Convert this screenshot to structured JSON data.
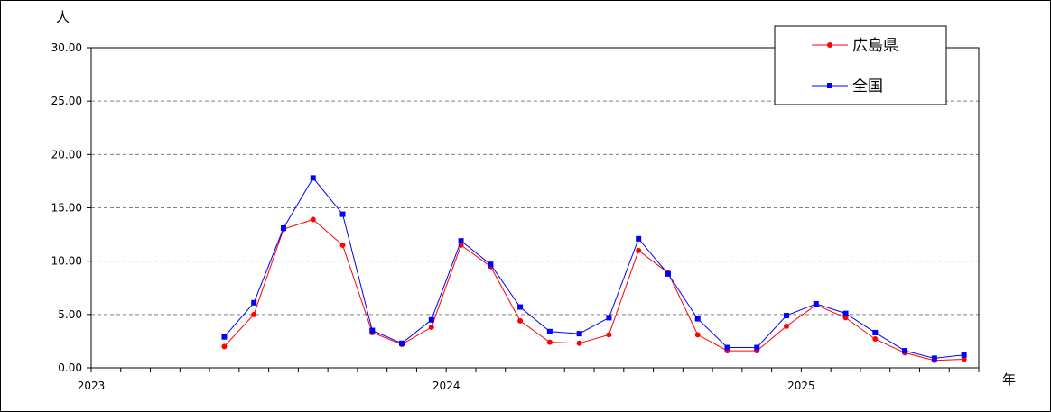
{
  "chart_data": {
    "type": "line",
    "title": "",
    "ylabel": "人",
    "xlabel": "年",
    "ylim": [
      0,
      30
    ],
    "y_ticks": [
      "0.00",
      "5.00",
      "10.00",
      "15.00",
      "20.00",
      "25.00",
      "30.00"
    ],
    "grid": "horizontal-dashed",
    "legend_position": "top-right",
    "year_labels": [
      "2023",
      "2024",
      "2025"
    ],
    "x": [
      "2023-01",
      "2023-02",
      "2023-03",
      "2023-04",
      "2023-05",
      "2023-06",
      "2023-07",
      "2023-08",
      "2023-09",
      "2023-10",
      "2023-11",
      "2023-12",
      "2024-01",
      "2024-02",
      "2024-03",
      "2024-04",
      "2024-05",
      "2024-06",
      "2024-07",
      "2024-08",
      "2024-09",
      "2024-10",
      "2024-11",
      "2024-12",
      "2025-01",
      "2025-02",
      "2025-03",
      "2025-04",
      "2025-05",
      "2025-06"
    ],
    "series": [
      {
        "name": "広島県",
        "color": "#ff0000",
        "marker": "circle",
        "values": [
          null,
          null,
          null,
          null,
          2.0,
          5.0,
          13.0,
          13.9,
          11.5,
          3.3,
          2.2,
          3.8,
          11.5,
          9.5,
          4.4,
          2.4,
          2.3,
          3.1,
          11.0,
          8.9,
          3.1,
          1.6,
          1.6,
          3.9,
          5.9,
          4.7,
          2.7,
          1.4,
          0.7,
          0.8
        ]
      },
      {
        "name": "全国",
        "color": "#0000ff",
        "marker": "square",
        "values": [
          null,
          null,
          null,
          null,
          2.9,
          6.1,
          13.1,
          17.8,
          14.4,
          3.5,
          2.3,
          4.5,
          11.9,
          9.7,
          5.7,
          3.4,
          3.2,
          4.7,
          12.1,
          8.8,
          4.6,
          1.9,
          1.9,
          4.9,
          6.0,
          5.1,
          3.3,
          1.6,
          0.9,
          1.2
        ]
      }
    ]
  }
}
